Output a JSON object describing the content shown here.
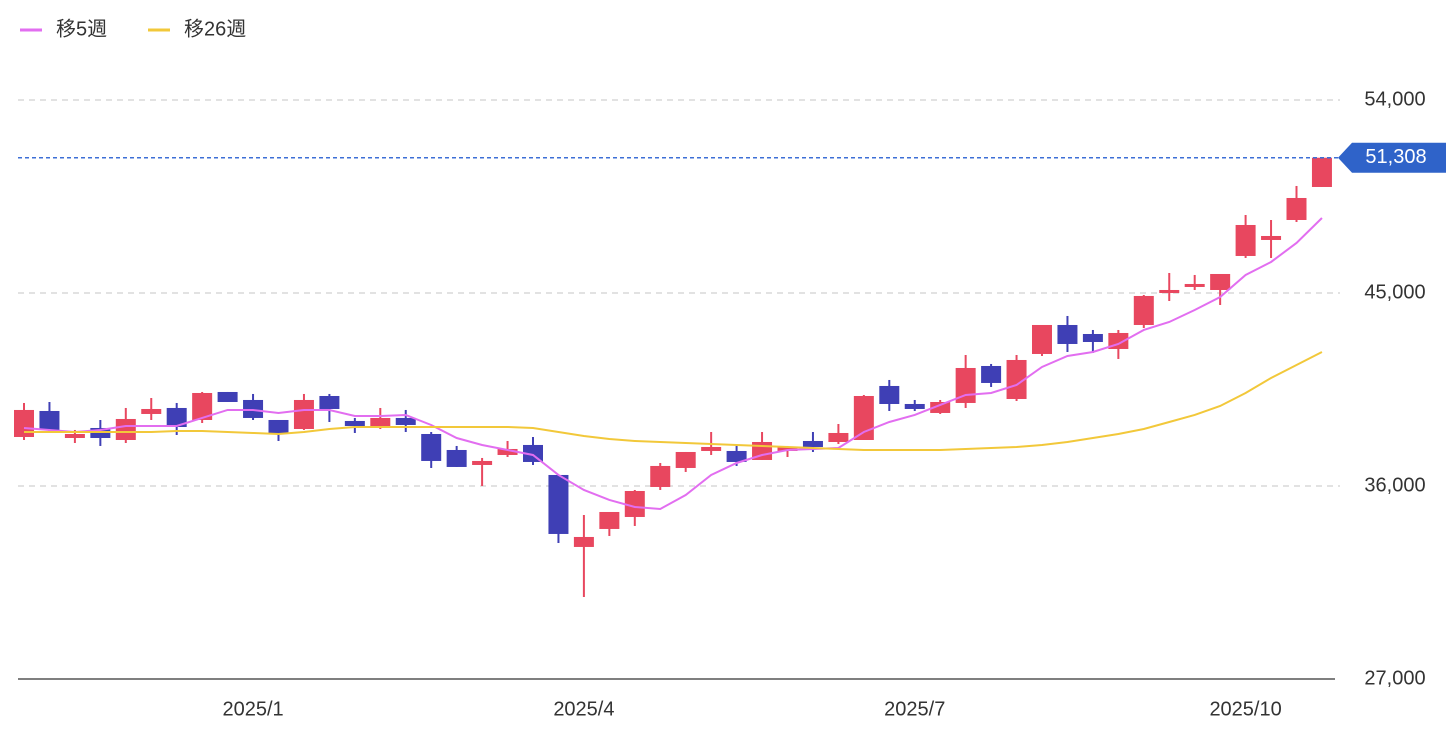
{
  "chart_data": {
    "type": "candlestick",
    "categories": [
      null,
      null,
      null,
      null,
      null,
      null,
      null,
      null,
      null,
      "2025/1",
      null,
      null,
      null,
      null,
      null,
      null,
      null,
      null,
      null,
      null,
      null,
      null,
      "2025/4",
      null,
      null,
      null,
      null,
      null,
      null,
      null,
      null,
      null,
      null,
      null,
      null,
      "2025/7",
      null,
      null,
      null,
      null,
      null,
      null,
      null,
      null,
      null,
      null,
      null,
      null,
      "2025/10",
      null,
      null,
      null
    ],
    "open": [
      38285,
      39498,
      38238,
      38705,
      38145,
      39358,
      39638,
      39078,
      40384,
      40011,
      39078,
      38658,
      40197,
      39032,
      38705,
      39172,
      38425,
      37679,
      36980,
      37446,
      37913,
      36514,
      33157,
      33996,
      34555,
      35954,
      36840,
      37633,
      37633,
      37213,
      37633,
      38099,
      38052,
      38145,
      40664,
      39824,
      39405,
      39871,
      41596,
      40057,
      42156,
      43508,
      43088,
      42389,
      43508,
      45000,
      45280,
      45140,
      46726,
      47472,
      48404,
      49943
    ],
    "high": [
      39871,
      39917,
      38612,
      39078,
      39638,
      40104,
      39871,
      40384,
      40384,
      40291,
      39078,
      40291,
      40291,
      39172,
      39638,
      39545,
      38518,
      37866,
      37307,
      38099,
      38285,
      36514,
      34648,
      34788,
      35814,
      37073,
      37586,
      38518,
      37866,
      38518,
      37866,
      38518,
      38891,
      40244,
      40944,
      40011,
      40011,
      42109,
      41690,
      42109,
      43508,
      43928,
      43275,
      43275,
      44907,
      45933,
      45840,
      45886,
      48637,
      48404,
      49990,
      51308
    ],
    "low": [
      38145,
      38518,
      38005,
      37866,
      38005,
      39078,
      38378,
      38938,
      39917,
      39078,
      38099,
      38612,
      38985,
      38472,
      38658,
      38518,
      36840,
      36887,
      36001,
      37353,
      36980,
      33343,
      30825,
      33669,
      34136,
      35814,
      36654,
      37446,
      36934,
      37213,
      37353,
      37586,
      37959,
      38145,
      39498,
      39498,
      39358,
      39638,
      40617,
      39964,
      42063,
      42249,
      42202,
      41923,
      43368,
      44627,
      45140,
      44441,
      46633,
      46633,
      48311,
      49943
    ],
    "close": [
      39545,
      38612,
      38425,
      38238,
      39125,
      39591,
      38751,
      40337,
      39917,
      39172,
      38425,
      40011,
      39591,
      38798,
      39172,
      38845,
      37167,
      36887,
      37167,
      37726,
      37120,
      33763,
      33623,
      34788,
      35767,
      36934,
      37586,
      37819,
      37120,
      38052,
      37819,
      37819,
      38472,
      40197,
      39824,
      39591,
      39917,
      41503,
      40804,
      41876,
      43508,
      42622,
      42715,
      43135,
      44861,
      45140,
      45420,
      45886,
      48171,
      47658,
      49430,
      51308
    ],
    "up_color": "#e8475f",
    "down_color": "#3f3fb5",
    "series": [
      {
        "name": "移5週",
        "color": "#e26ef0",
        "values": [
          38705,
          38612,
          38518,
          38612,
          38798,
          38798,
          38798,
          39172,
          39545,
          39545,
          39405,
          39545,
          39545,
          39265,
          39265,
          39312,
          38845,
          38238,
          37913,
          37679,
          37446,
          36514,
          35814,
          35348,
          35022,
          34929,
          35581,
          36514,
          37073,
          37446,
          37679,
          37726,
          37772,
          38518,
          38985,
          39312,
          39778,
          40244,
          40337,
          40710,
          41550,
          42063,
          42249,
          42622,
          43275,
          43648,
          44207,
          44814,
          45840,
          46446,
          47332,
          48498
        ]
      },
      {
        "name": "移26週",
        "color": "#f2c83a",
        "values": [
          38518,
          38518,
          38518,
          38518,
          38518,
          38518,
          38565,
          38565,
          38518,
          38472,
          38425,
          38518,
          38658,
          38751,
          38751,
          38751,
          38751,
          38751,
          38751,
          38751,
          38705,
          38518,
          38332,
          38192,
          38099,
          38052,
          38005,
          37959,
          37913,
          37866,
          37819,
          37772,
          37726,
          37679,
          37679,
          37679,
          37679,
          37726,
          37772,
          37819,
          37913,
          38052,
          38238,
          38425,
          38658,
          38985,
          39312,
          39731,
          40337,
          41037,
          41643,
          42249
        ]
      }
    ],
    "last_price": {
      "value": 51308,
      "label": "51,308"
    },
    "ylim": [
      27000,
      55650
    ],
    "yticks": [
      {
        "value": 27000,
        "label": "27,000"
      },
      {
        "value": 36000,
        "label": "36,000"
      },
      {
        "value": 45000,
        "label": "45,000"
      },
      {
        "value": 54000,
        "label": "54,000"
      }
    ],
    "grid": true
  }
}
